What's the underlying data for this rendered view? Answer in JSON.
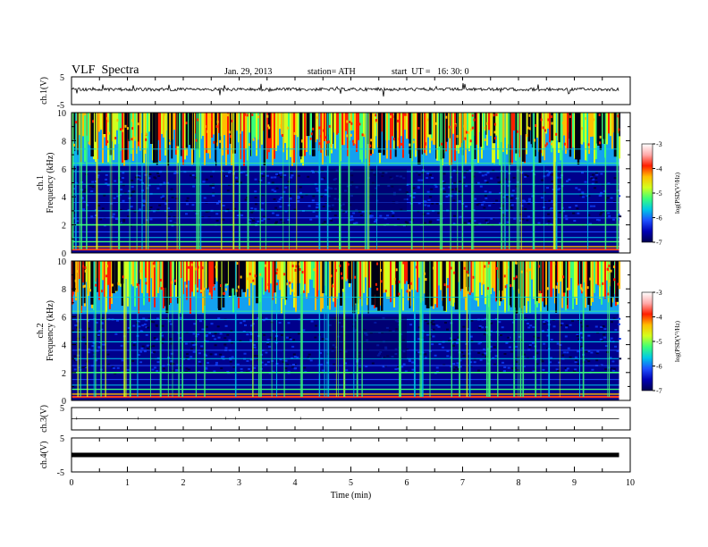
{
  "header": {
    "title": "VLF  Spectra",
    "date": "Jan. 29, 2013",
    "station": "station= ATH",
    "start": "start  UT =   16: 30: 0"
  },
  "chart_data": [
    {
      "type": "line",
      "panel": "ch1-waveform",
      "ylabel": "ch.1(V)",
      "ylim": [
        -5,
        5
      ],
      "yticks": [
        "5",
        "-5"
      ],
      "baseline": 0.5,
      "color": "#000000"
    },
    {
      "type": "heatmap",
      "panel": "ch1-spectrogram",
      "ylabel_line1": "ch.1",
      "ylabel_line2": "Frequency  (kHz)",
      "ylim": [
        0,
        10
      ],
      "yticks": [
        "0",
        "2",
        "4",
        "6",
        "8",
        "10"
      ],
      "xlim": [
        0,
        10
      ],
      "data_end_min": 9.8,
      "regime_change_min": [
        4.6,
        6.0
      ]
    },
    {
      "type": "heatmap",
      "panel": "ch2-spectrogram",
      "ylabel_line1": "ch.2",
      "ylabel_line2": "Frequency  (kHz)",
      "ylim": [
        0,
        10
      ],
      "yticks": [
        "0",
        "2",
        "4",
        "6",
        "8",
        "10"
      ],
      "xlim": [
        0,
        10
      ],
      "data_end_min": 9.8,
      "regime_change_min": [
        4.6,
        6.0
      ]
    },
    {
      "type": "line",
      "panel": "ch3-waveform",
      "ylabel": "ch.3(V)",
      "ylim": [
        -5,
        5
      ],
      "yticks": [
        "5"
      ],
      "baseline": 0,
      "color": "#000000"
    },
    {
      "type": "line",
      "panel": "ch4-waveform",
      "ylabel": "ch.4(V)",
      "ylim": [
        -5,
        5
      ],
      "yticks": [
        "5",
        "-5"
      ],
      "baseline": 0,
      "color": "#000000"
    },
    {
      "type": "colorbar",
      "label": "log(PSD(V²/Hz)",
      "range": [
        -7,
        -3
      ],
      "ticks": [
        "-3",
        "-4",
        "-5",
        "-6",
        "-7"
      ]
    }
  ],
  "xaxis": {
    "label": "Time  (min)",
    "range": [
      0,
      10
    ],
    "ticks": [
      "0",
      "1",
      "2",
      "3",
      "4",
      "5",
      "6",
      "7",
      "8",
      "9",
      "10"
    ]
  },
  "colormap": [
    "#000050",
    "#0000b4",
    "#1e50ff",
    "#00c8e6",
    "#3cff78",
    "#d2ff1e",
    "#ffbe00",
    "#ff1e00",
    "#ffaaaa",
    "#ffffff"
  ]
}
